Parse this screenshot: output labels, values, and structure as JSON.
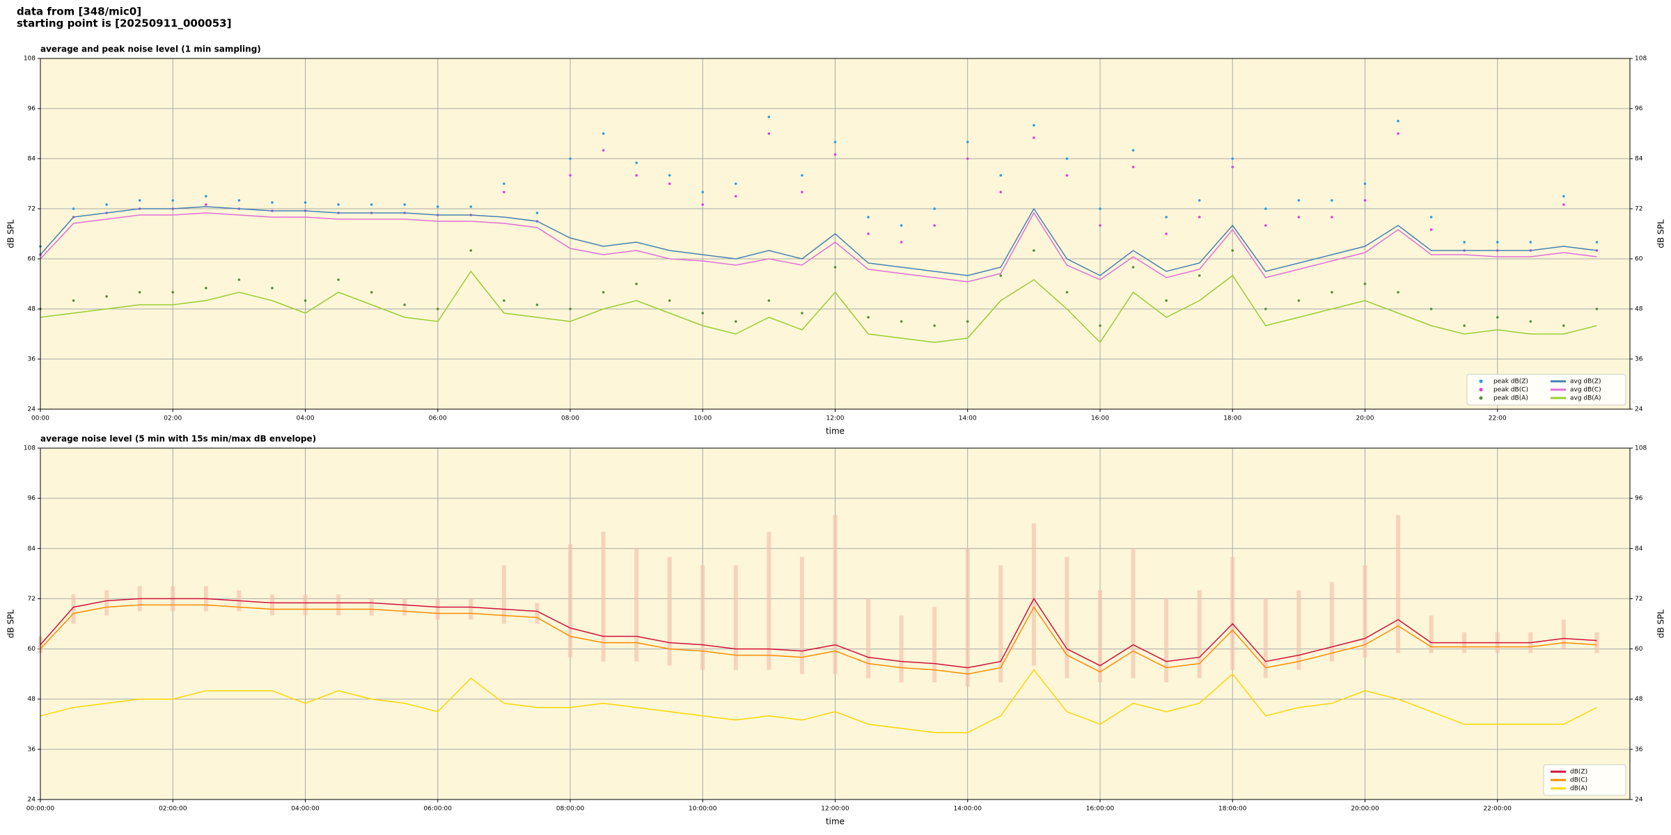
{
  "header": {
    "line1": "data from [348/mic0]",
    "line2": "starting point is [20250911_000053]"
  },
  "chart_data": [
    {
      "type": "line",
      "title": "average and peak noise level (1 min sampling)",
      "xlabel": "time",
      "ylabel": "dB SPL",
      "xlim": [
        0,
        24
      ],
      "ylim": [
        24,
        108
      ],
      "yticks": [
        24,
        36,
        48,
        60,
        72,
        84,
        96,
        108
      ],
      "xticks": [
        {
          "value": 0,
          "label": "00:00"
        },
        {
          "value": 2,
          "label": "02:00"
        },
        {
          "value": 4,
          "label": "04:00"
        },
        {
          "value": 6,
          "label": "06:00"
        },
        {
          "value": 8,
          "label": "08:00"
        },
        {
          "value": 10,
          "label": "10:00"
        },
        {
          "value": 12,
          "label": "12:00"
        },
        {
          "value": 14,
          "label": "14:00"
        },
        {
          "value": 16,
          "label": "16:00"
        },
        {
          "value": 18,
          "label": "18:00"
        },
        {
          "value": 20,
          "label": "20:00"
        },
        {
          "value": 22,
          "label": "22:00"
        }
      ],
      "grid": true,
      "legend": "lower right",
      "legend_ncol": 2,
      "background": "#fdf6d8",
      "x": [
        0,
        0.5,
        1,
        1.5,
        2,
        2.5,
        3,
        3.5,
        4,
        4.5,
        5,
        5.5,
        6,
        6.5,
        7,
        7.5,
        8,
        8.5,
        9,
        9.5,
        10,
        10.5,
        11,
        11.5,
        12,
        12.5,
        13,
        13.5,
        14,
        14.5,
        15,
        15.5,
        16,
        16.5,
        17,
        17.5,
        18,
        18.5,
        19,
        19.5,
        20,
        20.5,
        21,
        21.5,
        22,
        22.5,
        23,
        23.5
      ],
      "series": [
        {
          "name": "peak dB(Z)",
          "type": "scatter",
          "color": "#2b9be0",
          "values": [
            63,
            72,
            73,
            74,
            74,
            75,
            74,
            73.5,
            73.5,
            73,
            73,
            73,
            72.5,
            72.5,
            78,
            71,
            84,
            90,
            83,
            80,
            76,
            78,
            94,
            80,
            88,
            70,
            68,
            72,
            88,
            80,
            92,
            84,
            72,
            86,
            70,
            74,
            84,
            72,
            74,
            74,
            78,
            93,
            70,
            64,
            64,
            64,
            75,
            64
          ]
        },
        {
          "name": "peak dB(C)",
          "type": "scatter",
          "color": "#e23be2",
          "values": [
            61,
            70,
            71,
            72,
            72,
            73,
            72,
            71.5,
            71.5,
            71,
            71,
            71,
            70.5,
            70.5,
            76,
            69,
            80,
            86,
            80,
            78,
            73,
            75,
            90,
            76,
            85,
            66,
            64,
            68,
            84,
            76,
            89,
            80,
            68,
            82,
            66,
            70,
            82,
            68,
            70,
            70,
            74,
            90,
            67,
            62,
            62,
            62,
            73,
            62
          ]
        },
        {
          "name": "peak dB(A)",
          "type": "scatter",
          "color": "#4f8f3a",
          "values": [
            48,
            50,
            51,
            52,
            52,
            53,
            55,
            53,
            50,
            55,
            52,
            49,
            48,
            62,
            50,
            49,
            48,
            52,
            54,
            50,
            47,
            45,
            50,
            47,
            58,
            46,
            45,
            44,
            45,
            56,
            62,
            52,
            44,
            58,
            50,
            56,
            62,
            48,
            50,
            52,
            54,
            52,
            48,
            44,
            46,
            45,
            44,
            48
          ]
        },
        {
          "name": "avg dB(Z)",
          "type": "line",
          "color": "#4682b4",
          "values": [
            61,
            70,
            71,
            72,
            72,
            72.5,
            72,
            71.5,
            71.5,
            71,
            71,
            71,
            70.5,
            70.5,
            70,
            69,
            65,
            63,
            64,
            62,
            61,
            60,
            62,
            60,
            66,
            59,
            58,
            57,
            56,
            58,
            72,
            60,
            56,
            62,
            57,
            59,
            68,
            57,
            59,
            61,
            63,
            68,
            62,
            62,
            62,
            62,
            63,
            62
          ]
        },
        {
          "name": "avg dB(C)",
          "type": "line",
          "color": "#e070d8",
          "values": [
            60,
            68.5,
            69.5,
            70.5,
            70.5,
            71,
            70.5,
            70,
            70,
            69.5,
            69.5,
            69.5,
            69,
            69,
            68.5,
            67.5,
            62.5,
            61,
            62,
            60,
            59.5,
            58.5,
            60,
            58.5,
            64,
            57.5,
            56.5,
            55.5,
            54.5,
            56.5,
            71,
            58.5,
            55,
            60.5,
            55.5,
            57.5,
            67,
            55.5,
            57.5,
            59.5,
            61.5,
            67,
            61,
            61,
            60.5,
            60.5,
            61.5,
            60.5
          ]
        },
        {
          "name": "avg dB(A)",
          "type": "line",
          "color": "#9acd32",
          "values": [
            46,
            47,
            48,
            49,
            49,
            50,
            52,
            50,
            47,
            52,
            49,
            46,
            45,
            57,
            47,
            46,
            45,
            48,
            50,
            47,
            44,
            42,
            46,
            43,
            52,
            42,
            41,
            40,
            41,
            50,
            55,
            48,
            40,
            52,
            46,
            50,
            56,
            44,
            46,
            48,
            50,
            47,
            44,
            42,
            43,
            42,
            42,
            44
          ]
        }
      ]
    },
    {
      "type": "line",
      "title": "average noise level (5 min with 15s min/max dB envelope)",
      "xlabel": "time",
      "ylabel": "dB SPL",
      "xlim": [
        0,
        24
      ],
      "ylim": [
        24,
        108
      ],
      "yticks": [
        24,
        36,
        48,
        60,
        72,
        84,
        96,
        108
      ],
      "xticks": [
        {
          "value": 0,
          "label": "00:00:00"
        },
        {
          "value": 2,
          "label": "02:00:00"
        },
        {
          "value": 4,
          "label": "04:00:00"
        },
        {
          "value": 6,
          "label": "06:00:00"
        },
        {
          "value": 8,
          "label": "08:00:00"
        },
        {
          "value": 10,
          "label": "10:00:00"
        },
        {
          "value": 12,
          "label": "12:00:00"
        },
        {
          "value": 14,
          "label": "14:00:00"
        },
        {
          "value": 16,
          "label": "16:00:00"
        },
        {
          "value": 18,
          "label": "18:00:00"
        },
        {
          "value": 20,
          "label": "20:00:00"
        },
        {
          "value": 22,
          "label": "22:00:00"
        }
      ],
      "grid": true,
      "legend": "lower right",
      "legend_ncol": 1,
      "background": "#fdf6d8",
      "x": [
        0,
        0.5,
        1,
        1.5,
        2,
        2.5,
        3,
        3.5,
        4,
        4.5,
        5,
        5.5,
        6,
        6.5,
        7,
        7.5,
        8,
        8.5,
        9,
        9.5,
        10,
        10.5,
        11,
        11.5,
        12,
        12.5,
        13,
        13.5,
        14,
        14.5,
        15,
        15.5,
        16,
        16.5,
        17,
        17.5,
        18,
        18.5,
        19,
        19.5,
        20,
        20.5,
        21,
        21.5,
        22,
        22.5,
        23,
        23.5
      ],
      "envelope": {
        "color": "#f4c4b0",
        "upper": [
          63,
          73,
          74,
          75,
          75,
          75,
          74,
          73,
          73,
          73,
          72,
          72,
          72,
          72,
          80,
          71,
          85,
          88,
          84,
          82,
          80,
          80,
          88,
          82,
          92,
          72,
          68,
          70,
          84,
          80,
          90,
          82,
          74,
          84,
          72,
          74,
          82,
          72,
          74,
          76,
          80,
          92,
          68,
          64,
          64,
          64,
          67,
          64
        ],
        "lower": [
          59,
          66,
          68,
          69,
          69,
          69,
          69,
          68,
          68,
          68,
          68,
          68,
          67,
          67,
          66,
          66,
          58,
          57,
          57,
          56,
          55,
          55,
          55,
          54,
          54,
          53,
          52,
          52,
          51,
          52,
          56,
          53,
          52,
          53,
          52,
          53,
          55,
          53,
          55,
          57,
          58,
          59,
          59,
          59,
          59,
          59,
          60,
          59
        ]
      },
      "series": [
        {
          "name": "dB(Z)",
          "type": "line",
          "color": "#d0103a",
          "values": [
            61,
            70,
            71.5,
            72,
            72,
            72,
            71.5,
            71,
            71,
            71,
            71,
            70.5,
            70,
            70,
            69.5,
            69,
            65,
            63,
            63,
            61.5,
            61,
            60,
            60,
            59.5,
            61,
            58,
            57,
            56.5,
            55.5,
            57,
            72,
            60,
            56,
            61,
            57,
            58,
            66,
            57,
            58.5,
            60.5,
            62.5,
            67,
            61.5,
            61.5,
            61.5,
            61.5,
            62.5,
            62
          ]
        },
        {
          "name": "dB(C)",
          "type": "line",
          "color": "#ff8c00",
          "values": [
            60,
            68.5,
            70,
            70.5,
            70.5,
            70.5,
            70,
            69.5,
            69.5,
            69.5,
            69.5,
            69,
            68.5,
            68.5,
            68,
            67.5,
            63,
            61.5,
            61.5,
            60,
            59.5,
            58.5,
            58.5,
            58,
            59.5,
            56.5,
            55.5,
            55,
            54,
            55.5,
            70,
            58.5,
            54.5,
            59.5,
            55.5,
            56.5,
            64.5,
            55.5,
            57,
            59,
            61,
            65.5,
            60.5,
            60.5,
            60.5,
            60.5,
            61.5,
            61
          ]
        },
        {
          "name": "dB(A)",
          "type": "line",
          "color": "#ffd700",
          "values": [
            44,
            46,
            47,
            48,
            48,
            50,
            50,
            50,
            47,
            50,
            48,
            47,
            45,
            53,
            47,
            46,
            46,
            47,
            46,
            45,
            44,
            43,
            44,
            43,
            45,
            42,
            41,
            40,
            40,
            44,
            55,
            45,
            42,
            47,
            45,
            47,
            54,
            44,
            46,
            47,
            50,
            48,
            45,
            42,
            42,
            42,
            42,
            46
          ]
        }
      ]
    }
  ]
}
